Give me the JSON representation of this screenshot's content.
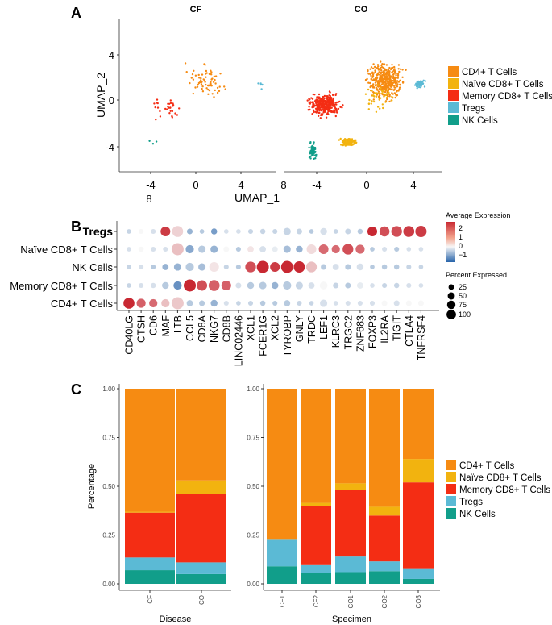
{
  "colors": {
    "CD4+ T Cells": "#F68B12",
    "Naïve CD8+ T Cells": "#F2B30F",
    "Memory CD8+ T Cells": "#F42D14",
    "Tregs": "#5BBAD5",
    "NK Cells": "#119E8A"
  },
  "chart_data": [
    {
      "type": "scatter",
      "panel_label": "A",
      "facets": [
        "CF",
        "CO"
      ],
      "xlabel": "UMAP_1",
      "ylabel": "UMAP_2",
      "x_ticks": [
        "-4",
        "0",
        "4"
      ],
      "x_extra_tick": "8",
      "y_ticks": [
        "4",
        "0",
        "-4"
      ],
      "legend": [
        "CD4+ T Cells",
        "Naïve CD8+ T Cells",
        "Memory CD8+ T Cells",
        "Tregs",
        "NK Cells"
      ]
    },
    {
      "type": "dotplot",
      "panel_label": "B",
      "rows": [
        "Tregs",
        "Naïve CD8+ T Cells",
        "NK Cells",
        "Memory CD8+ T Cells",
        "CD4+ T Cells"
      ],
      "genes": [
        "CD40LG",
        "CTSH",
        "CD6",
        "MAF",
        "LTB",
        "CCL5",
        "CD8A",
        "NKG7",
        "CD8B",
        "LINC02446",
        "XCL1",
        "FCER1G",
        "XCL2",
        "TYROBP",
        "GNLY",
        "TRDC",
        "LEF1",
        "KLRC3",
        "TRGC2",
        "ZNF683",
        "FOXP3",
        "IL2RA",
        "TIGIT",
        "CTLA4",
        "TNFRSF4"
      ],
      "avg_expression": [
        [
          -0.3,
          0.0,
          -0.2,
          2.0,
          0.4,
          -0.6,
          -0.4,
          -0.8,
          -0.2,
          -0.2,
          -0.3,
          -0.3,
          -0.3,
          -0.3,
          -0.3,
          -0.4,
          -0.2,
          -0.3,
          -0.3,
          -0.4,
          2.2,
          1.8,
          1.8,
          2.0,
          2.0
        ],
        [
          -0.2,
          0.0,
          -0.2,
          -0.2,
          0.6,
          -0.7,
          -0.4,
          -0.6,
          0.0,
          -0.4,
          0.2,
          -0.2,
          -0.1,
          -0.5,
          -0.6,
          0.3,
          1.5,
          1.5,
          1.8,
          1.5,
          -0.4,
          -0.2,
          -0.4,
          -0.2,
          -0.2
        ],
        [
          -0.3,
          -0.2,
          -0.4,
          -0.6,
          -0.6,
          -0.4,
          -0.5,
          0.2,
          -0.3,
          -0.4,
          1.8,
          2.2,
          2.0,
          2.2,
          2.2,
          0.6,
          -0.4,
          -0.2,
          -0.4,
          -0.2,
          -0.4,
          -0.4,
          -0.4,
          -0.3,
          -0.3
        ],
        [
          -0.3,
          -0.2,
          -0.2,
          -0.4,
          -0.9,
          2.2,
          1.8,
          1.6,
          1.6,
          -0.2,
          -0.4,
          -0.4,
          -0.6,
          -0.4,
          -0.3,
          -0.2,
          0.0,
          -0.3,
          -0.4,
          -0.1,
          -0.2,
          -0.3,
          -0.3,
          -0.2,
          -0.2
        ],
        [
          2.2,
          1.6,
          1.5,
          0.6,
          0.5,
          -0.4,
          -0.4,
          -0.6,
          -0.2,
          -0.3,
          -0.3,
          -0.4,
          -0.4,
          -0.4,
          -0.3,
          -0.3,
          -0.2,
          -0.2,
          -0.2,
          -0.2,
          -0.2,
          0.0,
          -0.2,
          0.0,
          0.0
        ]
      ],
      "pct_expressed": [
        [
          8,
          10,
          10,
          60,
          80,
          15,
          8,
          18,
          8,
          8,
          10,
          12,
          10,
          30,
          15,
          8,
          25,
          8,
          15,
          12,
          60,
          65,
          75,
          80,
          85
        ],
        [
          8,
          12,
          10,
          10,
          100,
          40,
          30,
          30,
          15,
          10,
          20,
          20,
          15,
          30,
          25,
          60,
          60,
          40,
          75,
          50,
          8,
          10,
          10,
          8,
          8
        ],
        [
          8,
          10,
          10,
          20,
          30,
          40,
          30,
          60,
          10,
          10,
          75,
          100,
          60,
          100,
          85,
          75,
          15,
          20,
          15,
          25,
          8,
          12,
          12,
          10,
          8
        ],
        [
          8,
          10,
          12,
          25,
          40,
          100,
          70,
          80,
          60,
          15,
          25,
          30,
          25,
          40,
          30,
          20,
          35,
          15,
          15,
          20,
          8,
          10,
          12,
          10,
          8
        ],
        [
          80,
          50,
          40,
          40,
          100,
          20,
          15,
          25,
          10,
          8,
          10,
          12,
          10,
          20,
          10,
          8,
          30,
          8,
          10,
          10,
          10,
          15,
          15,
          15,
          15
        ]
      ],
      "color_legend_title": "Average Expression",
      "color_ticks": [
        "2",
        "1",
        "0",
        "−1"
      ],
      "size_legend_title": "Percent Expressed",
      "size_legend_values": [
        "25",
        "50",
        "75",
        "100"
      ]
    },
    {
      "type": "bar",
      "stacked": true,
      "panel_label": "C",
      "xlabel": "Disease",
      "ylabel": "Percentage",
      "categories": [
        "CF",
        "CO"
      ],
      "y_ticks": [
        "1.00",
        "0.75",
        "0.50",
        "0.25",
        "0.00"
      ],
      "ylim": [
        0,
        1
      ],
      "series": [
        {
          "name": "NK Cells",
          "values": [
            0.07,
            0.05
          ]
        },
        {
          "name": "Tregs",
          "values": [
            0.065,
            0.06
          ]
        },
        {
          "name": "Memory CD8+ T Cells",
          "values": [
            0.23,
            0.35
          ]
        },
        {
          "name": "Naïve CD8+ T Cells",
          "values": [
            0.005,
            0.07
          ]
        },
        {
          "name": "CD4+ T Cells",
          "values": [
            0.63,
            0.47
          ]
        }
      ]
    },
    {
      "type": "bar",
      "stacked": true,
      "xlabel": "Specimen",
      "categories": [
        "CF1",
        "CF2",
        "CO1",
        "CO2",
        "CO3"
      ],
      "y_ticks": [
        "1.00",
        "0.75",
        "0.50",
        "0.25",
        "0.00"
      ],
      "ylim": [
        0,
        1
      ],
      "series": [
        {
          "name": "NK Cells",
          "values": [
            0.09,
            0.055,
            0.06,
            0.065,
            0.025
          ]
        },
        {
          "name": "Tregs",
          "values": [
            0.14,
            0.045,
            0.08,
            0.05,
            0.055
          ]
        },
        {
          "name": "Memory CD8+ T Cells",
          "values": [
            0.0,
            0.3,
            0.34,
            0.235,
            0.44
          ]
        },
        {
          "name": "Naïve CD8+ T Cells",
          "values": [
            0.0,
            0.015,
            0.035,
            0.045,
            0.12
          ]
        },
        {
          "name": "CD4+ T Cells",
          "values": [
            0.77,
            0.585,
            0.485,
            0.605,
            0.36
          ]
        }
      ],
      "legend": [
        "CD4+ T Cells",
        "Naïve CD8+ T Cells",
        "Memory CD8+ T Cells",
        "Tregs",
        "NK Cells"
      ]
    }
  ]
}
